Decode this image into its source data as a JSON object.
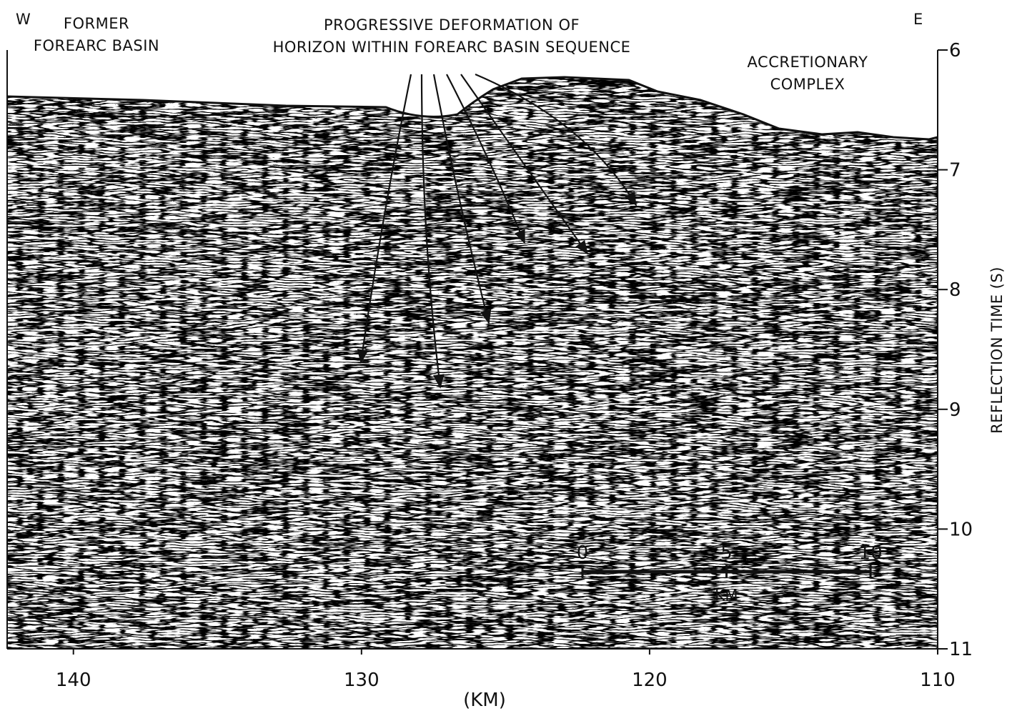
{
  "chart_data": {
    "type": "seismic-section",
    "west_label": "W",
    "east_label": "E",
    "annotations": [
      {
        "lines": [
          "FORMER",
          "FOREARC BASIN"
        ]
      },
      {
        "lines": [
          "PROGRESSIVE DEFORMATION OF",
          "HORIZON WITHIN FOREARC BASIN SEQUENCE"
        ]
      },
      {
        "lines": [
          "ACCRETIONARY",
          "COMPLEX"
        ]
      }
    ],
    "xlabel": "(KM)",
    "ylabel": "REFLECTION TIME (S)",
    "xlim": [
      142.3,
      110
    ],
    "xticks": [
      140,
      130,
      120,
      110
    ],
    "ylim": [
      6,
      11
    ],
    "yticks": [
      6,
      7,
      8,
      9,
      10,
      11
    ],
    "scale_bar": {
      "ticks": [
        0,
        5,
        10
      ],
      "label": "KM"
    }
  }
}
